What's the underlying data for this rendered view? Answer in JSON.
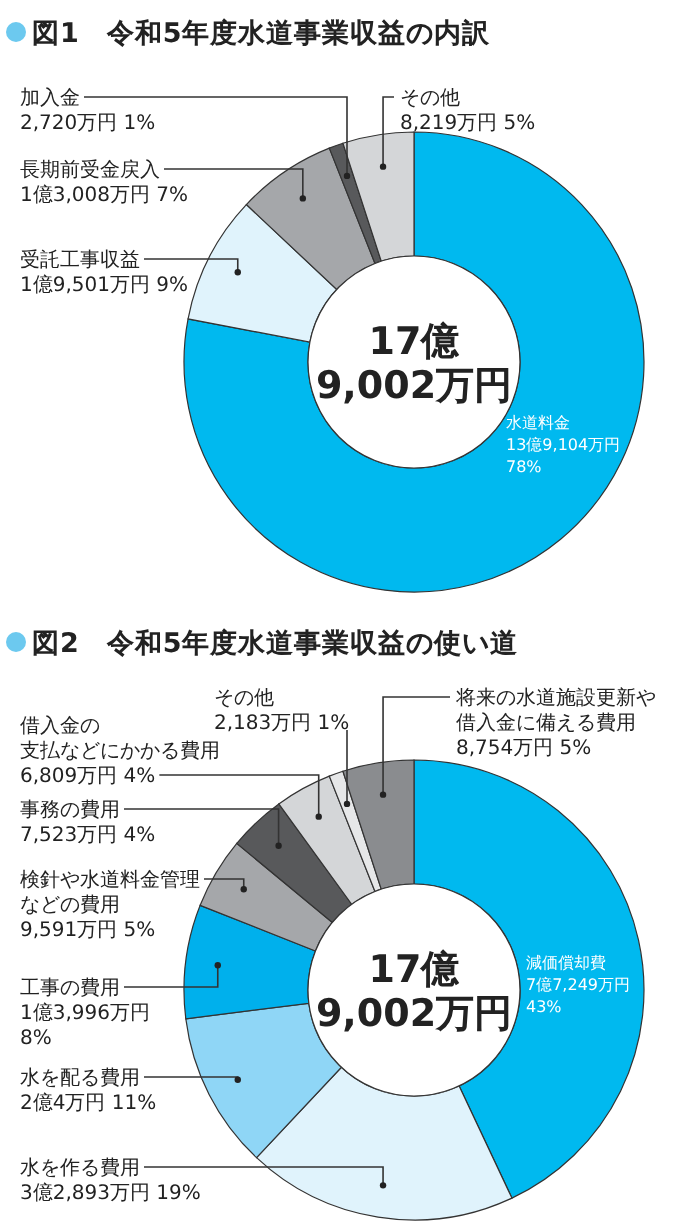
{
  "chart_data": [
    {
      "type": "donut",
      "title": "図1　令和5年度水道事業収益の内訳",
      "categories": [
        "水道料金",
        "受託工事収益",
        "長期前受金戻入",
        "加入金",
        "その他"
      ],
      "values": [
        78,
        9,
        7,
        1,
        5
      ],
      "value_labels": [
        "13億9,104万円  78%",
        "1億9,501万円  9%",
        "1億3,008万円  7%",
        "2,720万円  1%",
        "8,219万円  5%"
      ],
      "colors": [
        "#00b9ef",
        "#e0f3fc",
        "#a5a7aa",
        "#58595b",
        "#d4d6d8"
      ],
      "annotations": [
        "17億",
        "9,002万円"
      ]
    },
    {
      "type": "donut",
      "title": "図2　令和5年度水道事業収益の使い道",
      "categories": [
        "減価償却費",
        "水を作る費用",
        "水を配る費用",
        "工事の費用",
        "検針や水道料金管理などの費用",
        "事務の費用",
        "借入金の支払などにかかる費用",
        "その他",
        "将来の水道施設更新や借入金に備える費用"
      ],
      "values": [
        43,
        19,
        11,
        8,
        5,
        4,
        4,
        1,
        5
      ],
      "value_labels": [
        "7億7,249万円  43%",
        "3億2,893万円  19%",
        "2億4万円  11%",
        "1億3,996万円  8%",
        "9,591万円  5%",
        "7,523万円  4%",
        "6,809万円  4%",
        "2,183万円  1%",
        "8,754万円  5%"
      ],
      "colors": [
        "#00b9ef",
        "#e0f3fc",
        "#8fd6f6",
        "#00b0ec",
        "#a5a7aa",
        "#58595b",
        "#d4d6d8",
        "#e6e7e8",
        "#8a8c8f"
      ],
      "annotations": [
        "17億",
        "9,002万円"
      ]
    }
  ]
}
